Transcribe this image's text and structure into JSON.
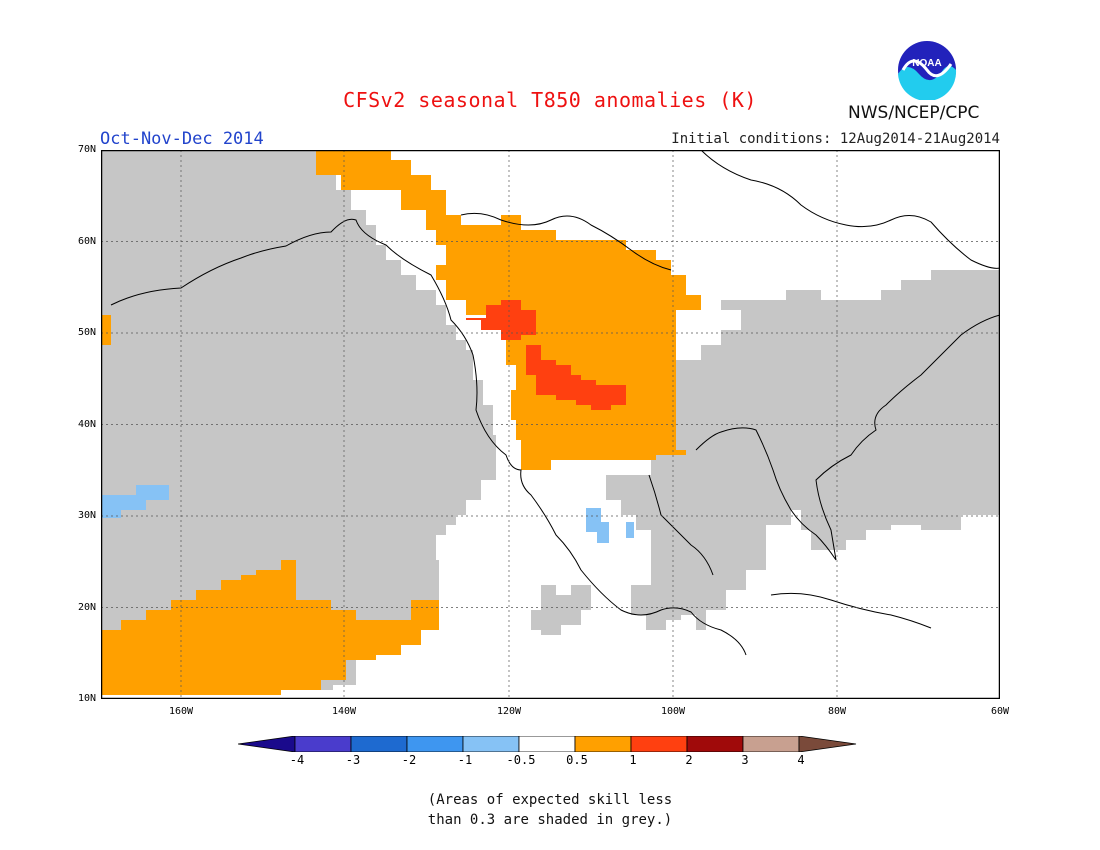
{
  "title": "CFSv2 seasonal T850 anomalies (K)",
  "season": "Oct-Nov-Dec 2014",
  "initial_conditions": "Initial conditions: 12Aug2014-21Aug2014",
  "organization": "NWS/NCEP/CPC",
  "logo_text": "NOAA",
  "lat_labels": [
    "70N",
    "60N",
    "50N",
    "40N",
    "30N",
    "20N",
    "10N"
  ],
  "lon_labels": [
    "160W",
    "140W",
    "120W",
    "100W",
    "80W",
    "60W"
  ],
  "colorbar": {
    "labels": [
      "-4",
      "-3",
      "-2",
      "-1",
      "-0.5",
      "0.5",
      "1",
      "2",
      "3",
      "4"
    ],
    "colors": [
      "#1a0a8c",
      "#4a3ccc",
      "#1e6ad0",
      "#3e96f0",
      "#86c2f5",
      "#ffffff",
      "#ffa000",
      "#ff4010",
      "#a00a0a",
      "#c8a090",
      "#7a4a3a"
    ]
  },
  "colors": {
    "grey": "#c6c6c6",
    "orange": "#ffa000",
    "red": "#ff4010",
    "light_blue": "#86c2f5"
  },
  "note": {
    "line1": "(Areas of expected skill less",
    "line2": "than 0.3 are shaded in grey.)"
  }
}
